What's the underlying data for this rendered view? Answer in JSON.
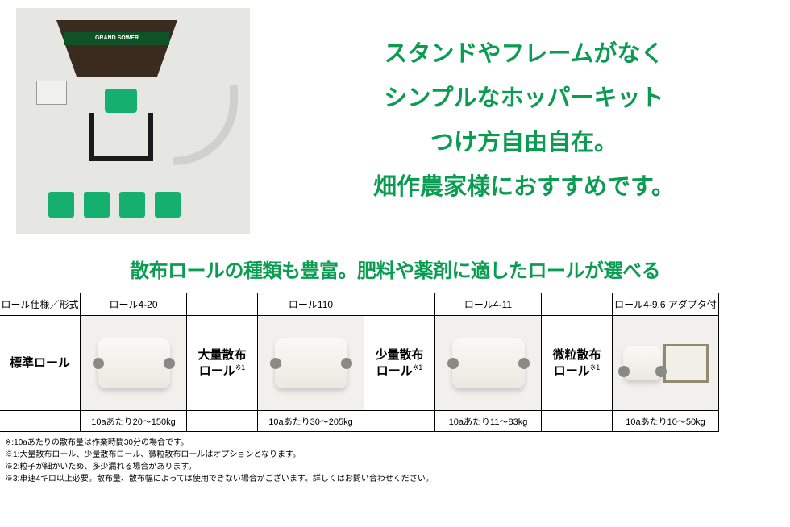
{
  "colors": {
    "brand_green": "#0a9d52",
    "knob_green": "#15b06f",
    "hopper_brown": "#3b2a1e",
    "image_bg": "#e6e6e2",
    "border": "#000000",
    "roll_bg": "#f2f0ed"
  },
  "product_image": {
    "label": "GRAND SOWER",
    "description": "hopper-kit-photo"
  },
  "headline": {
    "line1": "スタンドやフレームがなく",
    "line2": "シンプルなホッパーキット",
    "line3": "つけ方自由自在。",
    "line4": "畑作農家様におすすめです。",
    "font_size": 29,
    "color": "#0a9d52"
  },
  "subheading": {
    "text": "散布ロールの種類も豊富。肥料や薬剤に適したロールが選べる",
    "color": "#0a9d52",
    "font_size": 24
  },
  "table": {
    "spec_header": "ロール仕様／形式",
    "columns": [
      {
        "model": "ロール4-20",
        "category": "標準ロール",
        "caption": "10aあたり20～150kg",
        "footnote_mark": ""
      },
      {
        "model": "ロール110",
        "category": "大量散布\nロール",
        "caption": "10aあたり30～205kg",
        "footnote_mark": "※1"
      },
      {
        "model": "ロール4-11",
        "category": "少量散布\nロール",
        "caption": "10aあたり11～83kg",
        "footnote_mark": "※1"
      },
      {
        "model": "ロール4-9.6 アダプタ付",
        "category": "微粒散布\nロール",
        "caption": "10aあたり10～50kg",
        "footnote_mark": "※1"
      }
    ]
  },
  "footnotes": {
    "note0": "※:10aあたりの散布量は作業時間30分の場合です。",
    "note1": "※1:大量散布ロール、少量散布ロール、微粒散布ロールはオプションとなります。",
    "note2": "※2:粒子が細かいため、多少漏れる場合があります。",
    "note3": "※3:車速4キロ以上必要。散布量、散布幅によっては使用できない場合がございます。詳しくはお問い合わせください。"
  }
}
